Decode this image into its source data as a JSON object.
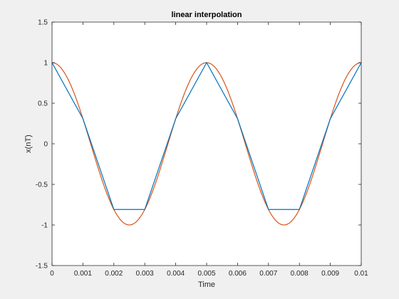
{
  "chart_data": {
    "type": "line",
    "title": "linear interpolation",
    "xlabel": "Time",
    "ylabel": "x(nT)",
    "xlim": [
      0,
      0.01
    ],
    "ylim": [
      -1.5,
      1.5
    ],
    "grid": false,
    "xticks": [
      "0",
      "0.001",
      "0.002",
      "0.003",
      "0.004",
      "0.005",
      "0.006",
      "0.007",
      "0.008",
      "0.009",
      "0.01"
    ],
    "xtick_values": [
      0,
      0.001,
      0.002,
      0.003,
      0.004,
      0.005,
      0.006,
      0.007,
      0.008,
      0.009,
      0.01
    ],
    "yticks": [
      "-1.5",
      "-1",
      "-0.5",
      "0",
      "0.5",
      "1",
      "1.5"
    ],
    "ytick_values": [
      -1.5,
      -1,
      -0.5,
      0,
      0.5,
      1,
      1.5
    ],
    "series": [
      {
        "color": "#0072bd",
        "x": [
          0,
          0.001,
          0.002,
          0.003,
          0.004,
          0.005,
          0.006,
          0.007,
          0.008,
          0.009,
          0.01
        ],
        "y": [
          1,
          0.309,
          -0.809,
          -0.809,
          0.309,
          1,
          0.309,
          -0.809,
          -0.809,
          0.309,
          1
        ]
      },
      {
        "color": "#d95319",
        "function": "cos",
        "frequency": 200,
        "amplitude": 1,
        "x_range": [
          0,
          0.01
        ]
      }
    ]
  },
  "colors": {
    "figure_background": "#f0f0f0",
    "axes_background": "#ffffff",
    "axis_color": "#262626"
  }
}
